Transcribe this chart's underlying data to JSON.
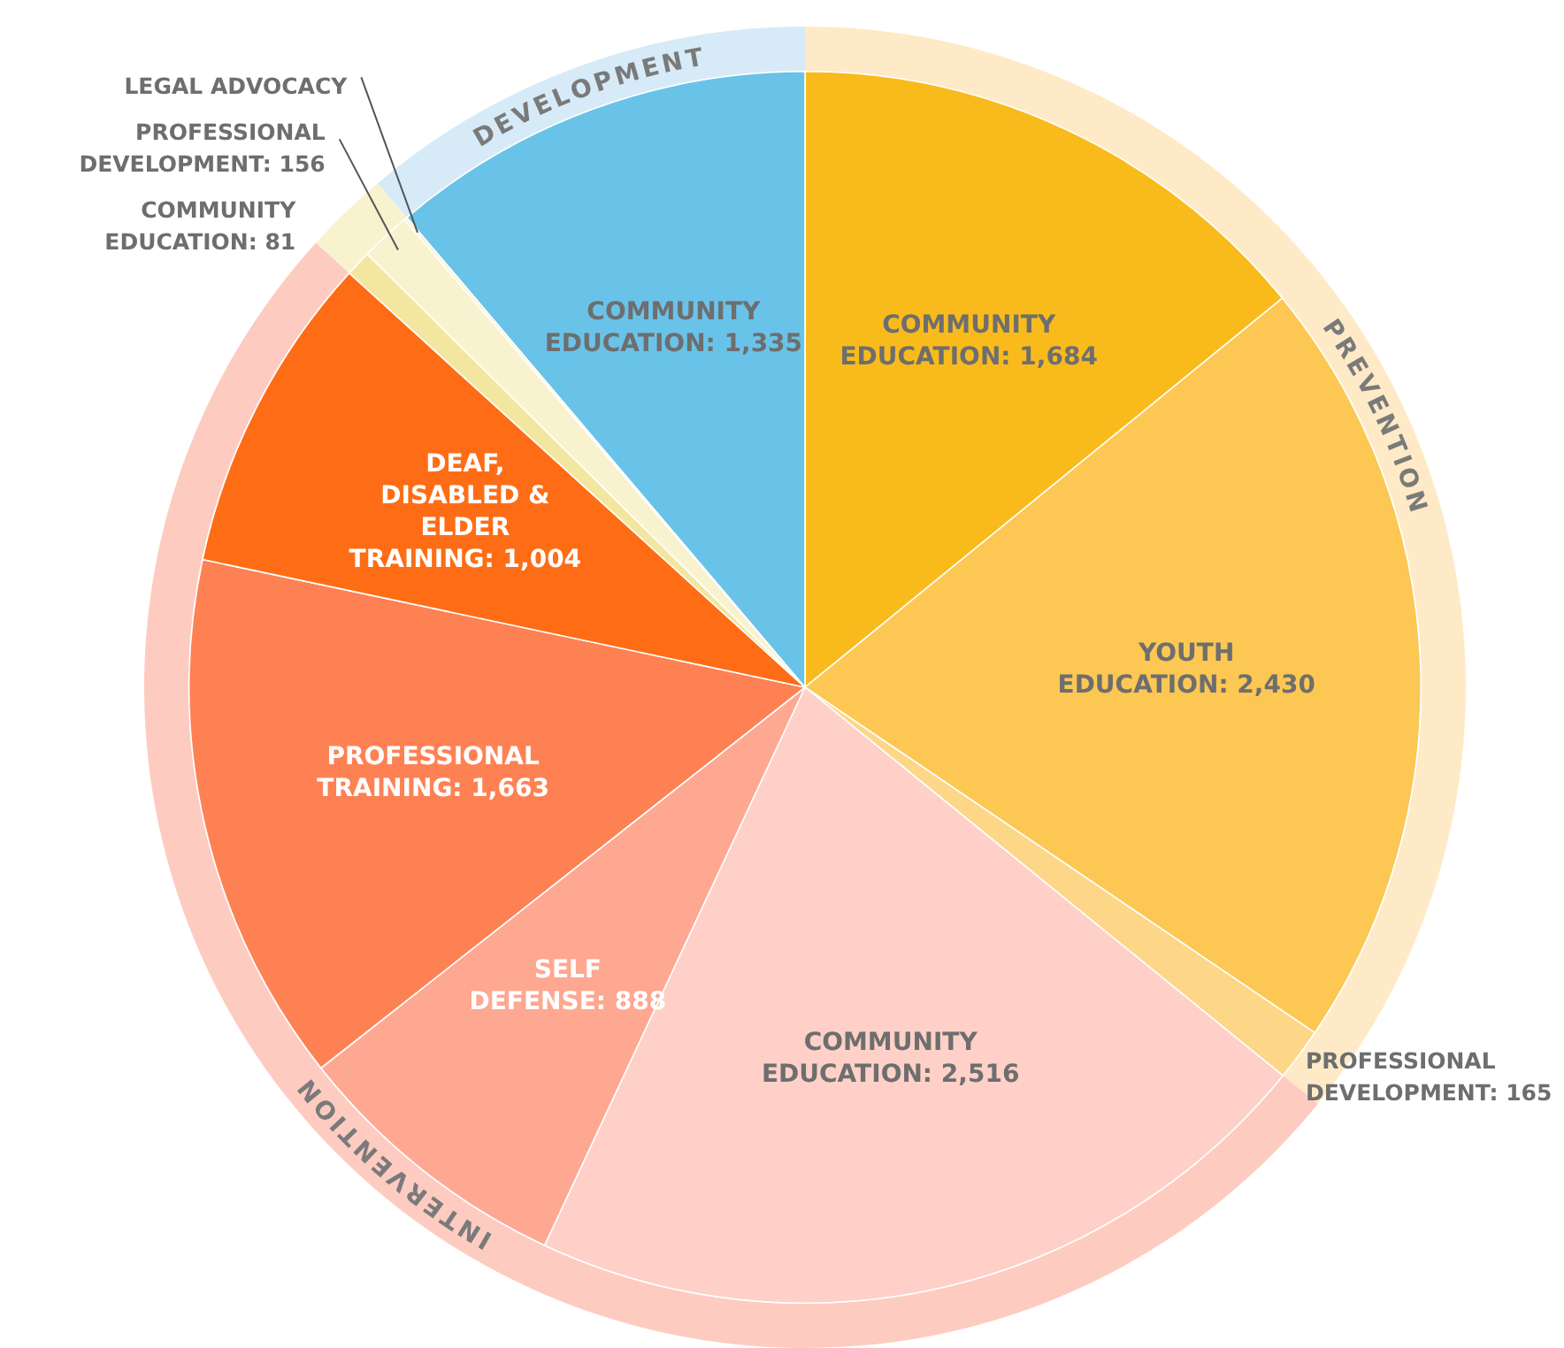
{
  "chart_data": [
    {
      "type": "pie",
      "categories": [
        "COMMUNITY EDUCATION",
        "YOUTH EDUCATION",
        "PROFESSIONAL DEVELOPMENT",
        "COMMUNITY EDUCATION",
        "SELF DEFENSE",
        "PROFESSIONAL TRAINING",
        "DEAF, DISABLED & ELDER TRAINING",
        "COMMUNITY EDUCATION",
        "PROFESSIONAL DEVELOPMENT",
        "LEGAL ADVOCACY",
        "COMMUNITY EDUCATION"
      ],
      "values": [
        1684,
        2430,
        165,
        2516,
        888,
        1663,
        1004,
        81,
        156,
        10,
        1335
      ],
      "colors": [
        "#f9bb1c",
        "#fcc753",
        "#fdd687",
        "#fed0c8",
        "#fea791",
        "#fe8154",
        "#fe6d15",
        "#f3e69f",
        "#f8f2cf",
        "#f8f2cf",
        "#69c3e9"
      ],
      "value_labels": [
        "1,684",
        "2,430",
        "165",
        "2,516",
        "888",
        "1,663",
        "1,004",
        "81",
        "156",
        null,
        "1,335"
      ]
    },
    {
      "type": "donut",
      "categories": [
        "PREVENTION",
        "INTERVENTION",
        null,
        "DEVELOPMENT"
      ],
      "values": [
        35.86,
        50.88,
        2.07,
        11.19
      ],
      "colors": [
        "#feeac6",
        "#fecbc1",
        "#f8f2cf",
        "#d6ebf7"
      ]
    }
  ]
}
